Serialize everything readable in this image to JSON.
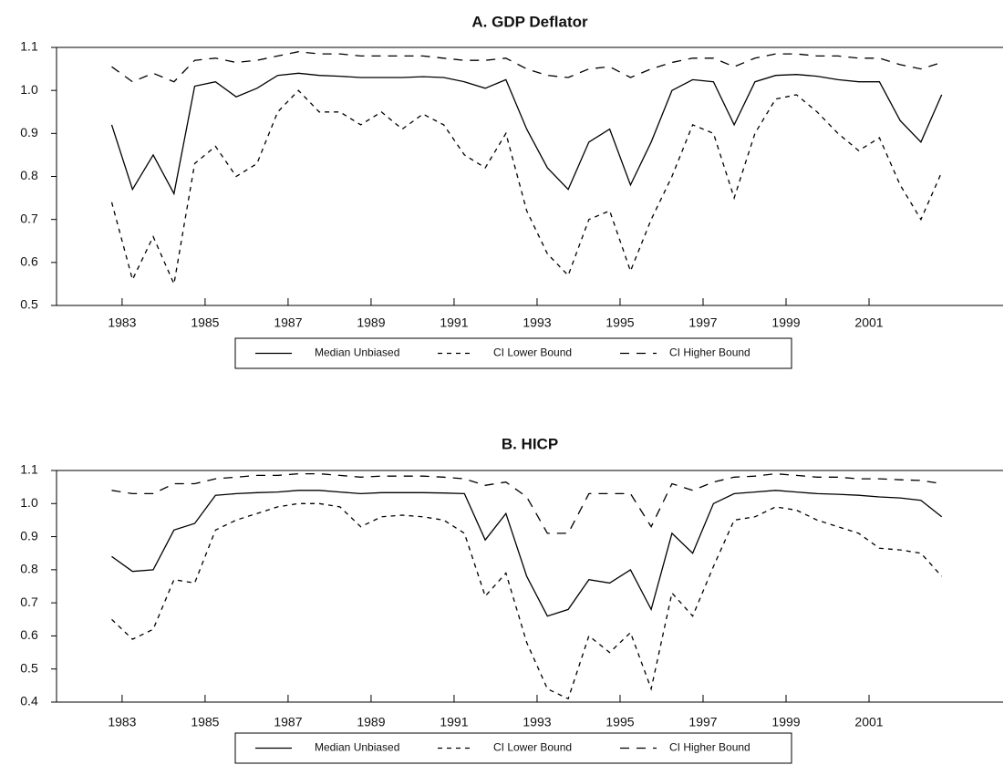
{
  "chart_data": [
    {
      "type": "line",
      "title": "A. GDP Deflator",
      "x": [
        1982.75,
        1983.25,
        1983.75,
        1984.25,
        1984.75,
        1985.25,
        1985.75,
        1986.25,
        1986.75,
        1987.25,
        1987.75,
        1988.25,
        1988.75,
        1989.25,
        1989.75,
        1990.25,
        1990.75,
        1991.25,
        1991.75,
        1992.25,
        1992.75,
        1993.25,
        1993.75,
        1994.25,
        1994.75,
        1995.25,
        1995.75,
        1996.25,
        1996.75,
        1997.25,
        1997.75,
        1998.25,
        1998.75,
        1999.25,
        1999.75,
        2000.25,
        2000.75,
        2001.25,
        2001.75,
        2002.25,
        2002.75
      ],
      "series": [
        {
          "name": "Median Unbiased",
          "color": "#000000",
          "style": "solid",
          "values": [
            0.92,
            0.77,
            0.85,
            0.76,
            1.01,
            1.02,
            0.985,
            1.005,
            1.035,
            1.04,
            1.035,
            1.033,
            1.03,
            1.03,
            1.03,
            1.032,
            1.03,
            1.02,
            1.005,
            1.025,
            0.91,
            0.82,
            0.77,
            0.88,
            0.91,
            0.78,
            0.88,
            1.0,
            1.025,
            1.02,
            0.92,
            1.02,
            1.035,
            1.037,
            1.033,
            1.025,
            1.02,
            1.02,
            0.93,
            0.88,
            0.99
          ]
        },
        {
          "name": "CI Lower Bound",
          "color": "#000000",
          "style": "dashdot",
          "values": [
            0.74,
            0.56,
            0.66,
            0.55,
            0.83,
            0.87,
            0.8,
            0.83,
            0.95,
            1.0,
            0.95,
            0.95,
            0.92,
            0.95,
            0.91,
            0.945,
            0.92,
            0.85,
            0.82,
            0.9,
            0.72,
            0.62,
            0.57,
            0.7,
            0.72,
            0.58,
            0.7,
            0.8,
            0.92,
            0.9,
            0.75,
            0.9,
            0.98,
            0.99,
            0.95,
            0.9,
            0.86,
            0.89,
            0.78,
            0.7,
            0.81
          ]
        },
        {
          "name": "CI Higher Bound",
          "color": "#000000",
          "style": "dashed",
          "values": [
            1.055,
            1.02,
            1.04,
            1.02,
            1.07,
            1.075,
            1.065,
            1.07,
            1.08,
            1.09,
            1.085,
            1.085,
            1.08,
            1.08,
            1.08,
            1.08,
            1.075,
            1.07,
            1.07,
            1.075,
            1.05,
            1.035,
            1.03,
            1.05,
            1.055,
            1.03,
            1.05,
            1.065,
            1.075,
            1.075,
            1.055,
            1.075,
            1.085,
            1.085,
            1.08,
            1.08,
            1.075,
            1.075,
            1.06,
            1.05,
            1.065
          ]
        }
      ],
      "xlim": [
        1981.42,
        2004.23
      ],
      "xticks": [
        1983,
        1985,
        1987,
        1989,
        1991,
        1993,
        1995,
        1997,
        1999,
        2001
      ],
      "ylim": [
        0.5,
        1.1
      ],
      "yticks": [
        0.5,
        0.6,
        0.7,
        0.8,
        0.9,
        {
          "value": 1.0,
          "label": "1.0"
        },
        1.1
      ]
    },
    {
      "type": "line",
      "title": "B. HICP",
      "x": [
        1982.75,
        1983.25,
        1983.75,
        1984.25,
        1984.75,
        1985.25,
        1985.75,
        1986.25,
        1986.75,
        1987.25,
        1987.75,
        1988.25,
        1988.75,
        1989.25,
        1989.75,
        1990.25,
        1990.75,
        1991.25,
        1991.75,
        1992.25,
        1992.75,
        1993.25,
        1993.75,
        1994.25,
        1994.75,
        1995.25,
        1995.75,
        1996.25,
        1996.75,
        1997.25,
        1997.75,
        1998.25,
        1998.75,
        1999.25,
        1999.75,
        2000.25,
        2000.75,
        2001.25,
        2001.75,
        2002.25,
        2002.75
      ],
      "series": [
        {
          "name": "Median Unbiased",
          "color": "#000000",
          "style": "solid",
          "values": [
            0.84,
            0.795,
            0.8,
            0.92,
            0.94,
            1.025,
            1.03,
            1.033,
            1.035,
            1.04,
            1.04,
            1.035,
            1.03,
            1.033,
            1.033,
            1.033,
            1.032,
            1.03,
            0.89,
            0.97,
            0.78,
            0.66,
            0.68,
            0.77,
            0.76,
            0.8,
            0.68,
            0.91,
            0.85,
            1.0,
            1.03,
            1.035,
            1.04,
            1.035,
            1.03,
            1.028,
            1.025,
            1.02,
            1.017,
            1.01,
            0.96
          ]
        },
        {
          "name": "CI Lower Bound",
          "color": "#000000",
          "style": "dashdot",
          "values": [
            0.65,
            0.59,
            0.62,
            0.77,
            0.76,
            0.92,
            0.95,
            0.97,
            0.99,
            1.0,
            1.0,
            0.99,
            0.93,
            0.96,
            0.965,
            0.96,
            0.95,
            0.91,
            0.72,
            0.79,
            0.58,
            0.44,
            0.41,
            0.6,
            0.55,
            0.61,
            0.44,
            0.73,
            0.66,
            0.81,
            0.95,
            0.96,
            0.99,
            0.98,
            0.95,
            0.93,
            0.91,
            0.865,
            0.86,
            0.85,
            0.78
          ]
        },
        {
          "name": "CI Higher Bound",
          "color": "#000000",
          "style": "dashed",
          "values": [
            1.04,
            1.03,
            1.03,
            1.06,
            1.06,
            1.075,
            1.08,
            1.085,
            1.085,
            1.09,
            1.09,
            1.085,
            1.08,
            1.083,
            1.083,
            1.083,
            1.08,
            1.075,
            1.055,
            1.065,
            1.02,
            0.91,
            0.91,
            1.03,
            1.03,
            1.03,
            0.93,
            1.06,
            1.04,
            1.065,
            1.08,
            1.083,
            1.09,
            1.085,
            1.08,
            1.08,
            1.075,
            1.075,
            1.072,
            1.07,
            1.06
          ]
        }
      ],
      "xlim": [
        1981.42,
        2004.23
      ],
      "xticks": [
        1983,
        1985,
        1987,
        1989,
        1991,
        1993,
        1995,
        1997,
        1999,
        2001
      ],
      "ylim": [
        0.4,
        1.1
      ],
      "yticks": [
        0.4,
        0.5,
        0.6,
        0.7,
        0.8,
        0.9,
        {
          "value": 1.0,
          "label": "1.0"
        },
        1.1
      ]
    }
  ]
}
